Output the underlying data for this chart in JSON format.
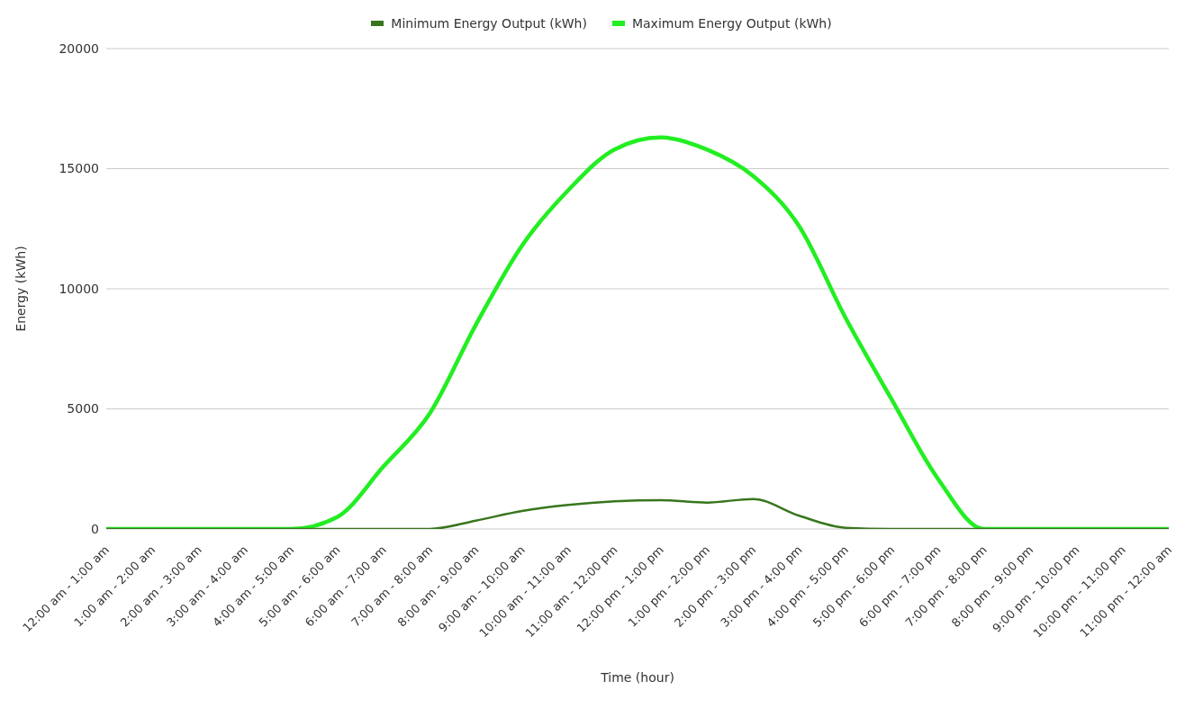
{
  "chart_data": {
    "type": "line",
    "xlabel": "Time (hour)",
    "ylabel": "Energy (kWh)",
    "categories": [
      "12:00 am - 1:00 am",
      "1:00 am - 2:00 am",
      "2:00 am - 3:00 am",
      "3:00 am - 4:00 am",
      "4:00 am - 5:00 am",
      "5:00 am - 6:00 am",
      "6:00 am - 7:00 am",
      "7:00 am - 8:00 am",
      "8:00 am - 9:00 am",
      "9:00 am - 10:00 am",
      "10:00 am - 11:00 am",
      "11:00 am - 12:00 pm",
      "12:00 pm - 1:00 pm",
      "1:00 pm - 2:00 pm",
      "2:00 pm - 3:00 pm",
      "3:00 pm - 4:00 pm",
      "4:00 pm - 5:00 pm",
      "5:00 pm - 6:00 pm",
      "6:00 pm - 7:00 pm",
      "7:00 pm - 8:00 pm",
      "8:00 pm - 9:00 pm",
      "9:00 pm - 10:00 pm",
      "10:00 pm - 11:00 pm",
      "11:00 pm - 12:00 am"
    ],
    "series": [
      {
        "name": "Minimum Energy Output (kWh)",
        "color": "#38761d",
        "values": [
          0,
          0,
          0,
          0,
          0,
          0,
          0,
          0,
          350,
          750,
          1000,
          1150,
          1200,
          1100,
          1250,
          550,
          50,
          0,
          0,
          0,
          0,
          0,
          0,
          0
        ]
      },
      {
        "name": "Maximum Energy Output (kWh)",
        "color": "#22ee22",
        "values": [
          0,
          0,
          0,
          0,
          0,
          500,
          2600,
          4800,
          8500,
          11800,
          14100,
          15800,
          16300,
          15800,
          14700,
          12600,
          8800,
          5400,
          2100,
          0,
          0,
          0,
          0,
          0
        ]
      }
    ],
    "ylim": [
      0,
      20000
    ],
    "yticks": [
      0,
      5000,
      10000,
      15000,
      20000
    ],
    "grid": "y",
    "legend": "top",
    "marker": "none",
    "line_style": "solid"
  }
}
